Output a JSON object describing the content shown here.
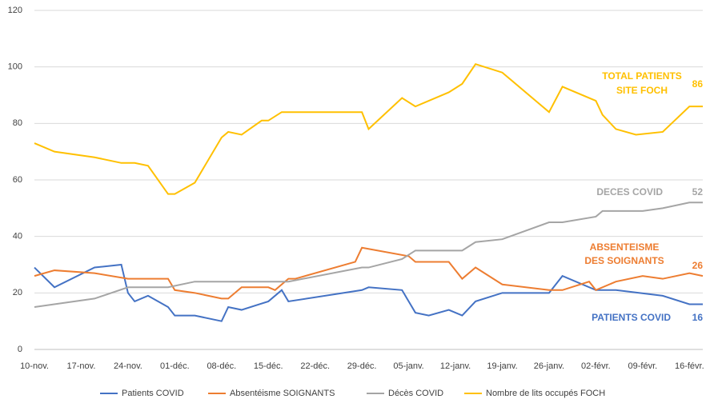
{
  "chart_data": {
    "type": "line",
    "xticks": [
      "10-nov.",
      "17-nov.",
      "24-nov.",
      "01-déc.",
      "08-déc.",
      "15-déc.",
      "22-déc.",
      "29-déc.",
      "05-janv.",
      "12-janv.",
      "19-janv.",
      "26-janv.",
      "02-févr.",
      "09-févr.",
      "16-févr."
    ],
    "xlim": [
      "10-nov.",
      "18-févr."
    ],
    "ylim": [
      0,
      120
    ],
    "yticks": [
      0,
      20,
      40,
      60,
      80,
      100,
      120
    ],
    "grid": true,
    "series": [
      {
        "name": "Patients COVID",
        "color": "#4472c4",
        "annotation": [
          "PATIENTS COVID"
        ],
        "x": [
          "10-nov.",
          "13-nov.",
          "19-nov.",
          "23-nov.",
          "24-nov.",
          "25-nov.",
          "27-nov.",
          "30-nov.",
          "01-déc.",
          "04-déc.",
          "08-déc.",
          "09-déc.",
          "11-déc.",
          "15-déc.",
          "17-déc.",
          "18-déc.",
          "29-déc.",
          "30-déc.",
          "04-janv.",
          "06-janv.",
          "08-janv.",
          "11-janv.",
          "13-janv.",
          "15-janv.",
          "19-janv.",
          "26-janv.",
          "28-janv.",
          "02-févr.",
          "05-févr.",
          "12-févr.",
          "16-févr.",
          "18-févr."
        ],
        "values": [
          29,
          22,
          29,
          30,
          20,
          17,
          19,
          15,
          12,
          12,
          10,
          15,
          14,
          17,
          21,
          17,
          21,
          22,
          21,
          13,
          12,
          14,
          12,
          17,
          20,
          20,
          26,
          21,
          21,
          19,
          16,
          16
        ]
      },
      {
        "name": "Absentéisme SOIGNANTS",
        "color": "#ed7d31",
        "annotation": [
          "ABSENTEISME",
          "DES SOIGNANTS"
        ],
        "x": [
          "10-nov.",
          "13-nov.",
          "19-nov.",
          "24-nov.",
          "30-nov.",
          "01-déc.",
          "04-déc.",
          "08-déc.",
          "09-déc.",
          "11-déc.",
          "15-déc.",
          "16-déc.",
          "18-déc.",
          "19-déc.",
          "28-déc.",
          "29-déc.",
          "05-janv.",
          "06-janv.",
          "11-janv.",
          "13-janv.",
          "15-janv.",
          "19-janv.",
          "26-janv.",
          "28-janv.",
          "01-févr.",
          "02-févr.",
          "05-févr.",
          "09-févr.",
          "12-févr.",
          "16-févr.",
          "18-févr."
        ],
        "values": [
          26,
          28,
          27,
          25,
          25,
          21,
          20,
          18,
          18,
          22,
          22,
          21,
          25,
          25,
          31,
          36,
          33,
          31,
          31,
          25,
          29,
          23,
          21,
          21,
          24,
          21,
          24,
          26,
          25,
          27,
          26
        ]
      },
      {
        "name": "Décès COVID",
        "color": "#a5a5a5",
        "annotation": [
          "DECES COVID"
        ],
        "x": [
          "10-nov.",
          "19-nov.",
          "24-nov.",
          "30-nov.",
          "04-déc.",
          "18-déc.",
          "29-déc.",
          "30-déc.",
          "04-janv.",
          "06-janv.",
          "13-janv.",
          "15-janv.",
          "19-janv.",
          "26-janv.",
          "28-janv.",
          "02-févr.",
          "03-févr.",
          "09-févr.",
          "12-févr.",
          "16-févr.",
          "18-févr."
        ],
        "values": [
          15,
          18,
          22,
          22,
          24,
          24,
          29,
          29,
          32,
          35,
          35,
          38,
          39,
          45,
          45,
          47,
          49,
          49,
          50,
          52,
          52
        ]
      },
      {
        "name": "Nombre de lits occupés FOCH",
        "color": "#ffc000",
        "annotation": [
          "TOTAL PATIENTS",
          "SITE FOCH"
        ],
        "x": [
          "10-nov.",
          "13-nov.",
          "19-nov.",
          "23-nov.",
          "25-nov.",
          "27-nov.",
          "30-nov.",
          "01-déc.",
          "04-déc.",
          "08-déc.",
          "09-déc.",
          "11-déc.",
          "14-déc.",
          "15-déc.",
          "17-déc.",
          "29-déc.",
          "30-déc.",
          "04-janv.",
          "06-janv.",
          "11-janv.",
          "13-janv.",
          "15-janv.",
          "19-janv.",
          "26-janv.",
          "28-janv.",
          "02-févr.",
          "03-févr.",
          "05-févr.",
          "08-févr.",
          "12-févr.",
          "16-févr.",
          "18-févr."
        ],
        "values": [
          73,
          70,
          68,
          66,
          66,
          65,
          55,
          55,
          59,
          75,
          77,
          76,
          81,
          81,
          84,
          84,
          78,
          89,
          86,
          91,
          94,
          101,
          98,
          84,
          93,
          88,
          83,
          78,
          76,
          77,
          86,
          86
        ]
      }
    ]
  }
}
